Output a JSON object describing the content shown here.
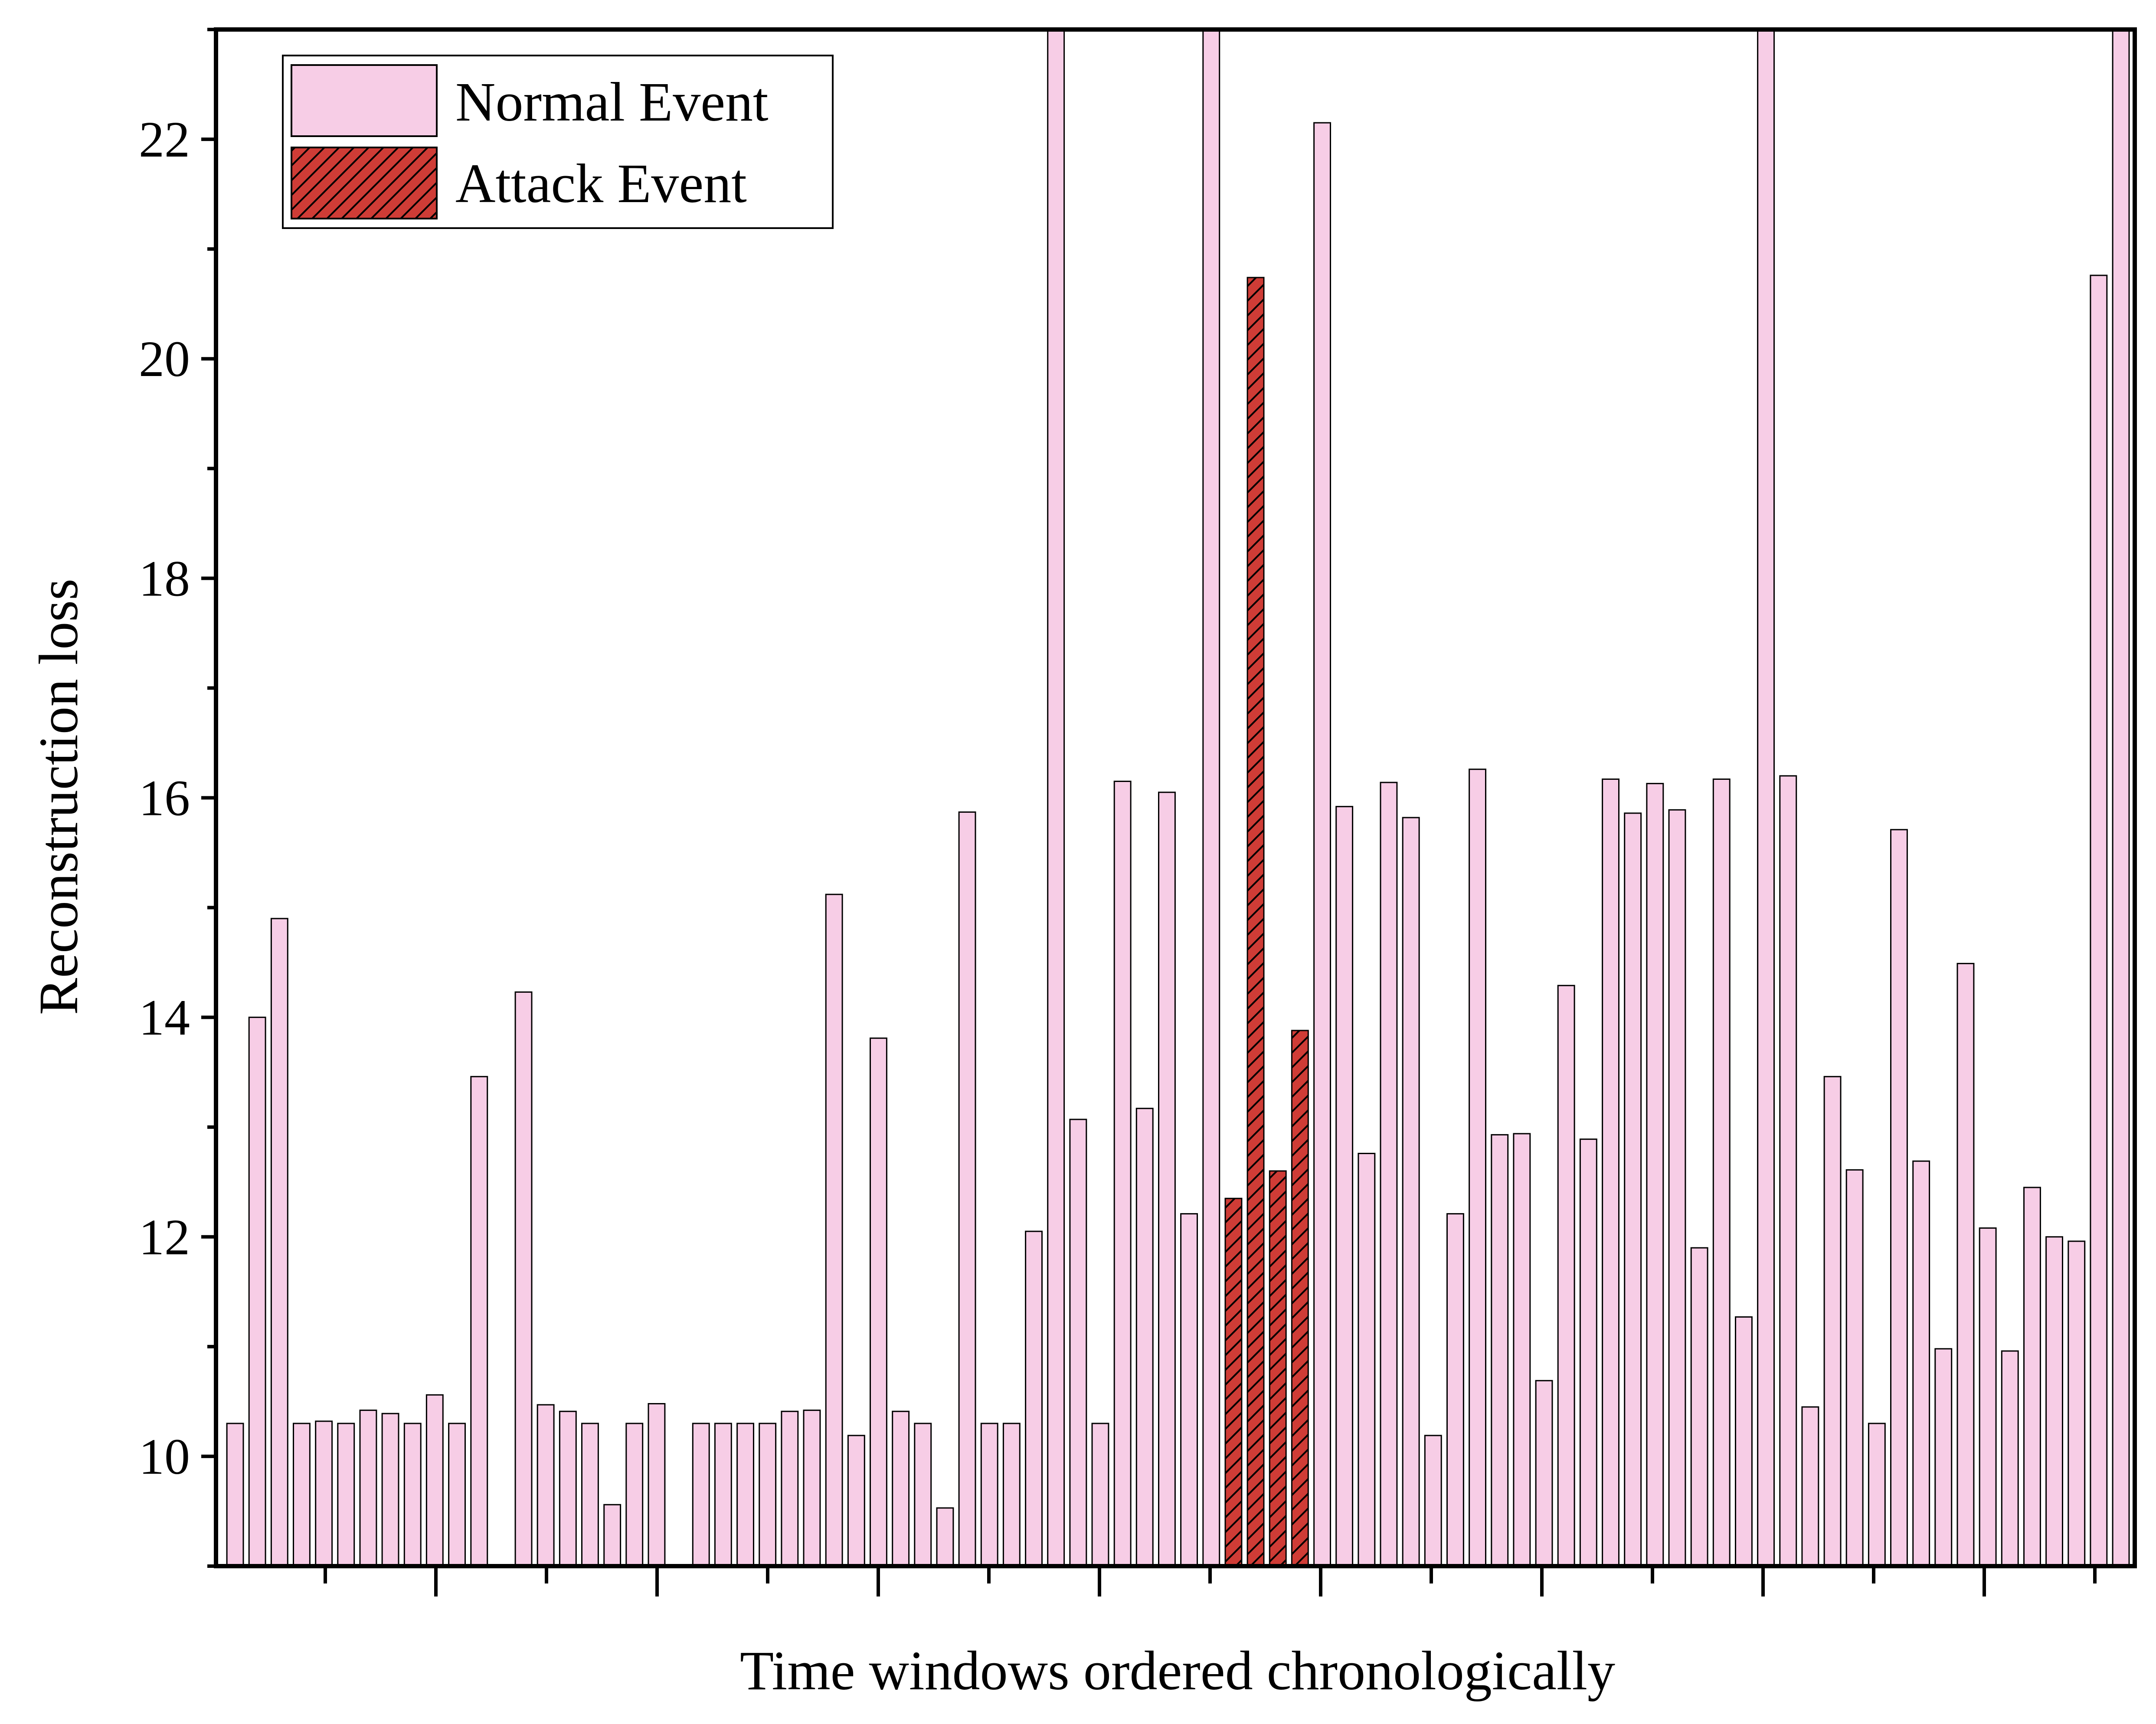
{
  "chart_data": {
    "type": "bar",
    "title": "",
    "xlabel": "Time windows ordered chronologically",
    "ylabel": "Reconstruction loss",
    "ylim": [
      9,
      23
    ],
    "yticks": [
      10,
      12,
      14,
      16,
      18,
      20,
      22
    ],
    "grid": false,
    "legend_position": "top-left",
    "colors": {
      "normal": "#f7cde6",
      "attack": "#cf3c36",
      "edge": "#000000",
      "hatch": "#000000"
    },
    "series": [
      {
        "name": "Normal Event",
        "key": "normal"
      },
      {
        "name": "Attack Event",
        "key": "attack"
      }
    ],
    "bars": [
      {
        "v": 10.3,
        "s": "normal"
      },
      {
        "v": 14.0,
        "s": "normal"
      },
      {
        "v": 14.9,
        "s": "normal"
      },
      {
        "v": 10.3,
        "s": "normal"
      },
      {
        "v": 10.32,
        "s": "normal"
      },
      {
        "v": 10.3,
        "s": "normal"
      },
      {
        "v": 10.42,
        "s": "normal"
      },
      {
        "v": 10.39,
        "s": "normal"
      },
      {
        "v": 10.3,
        "s": "normal"
      },
      {
        "v": 10.56,
        "s": "normal"
      },
      {
        "v": 10.3,
        "s": "normal"
      },
      {
        "v": 13.46,
        "s": "normal"
      },
      {
        "v": null,
        "s": "normal"
      },
      {
        "v": 14.23,
        "s": "normal"
      },
      {
        "v": 10.47,
        "s": "normal"
      },
      {
        "v": 10.41,
        "s": "normal"
      },
      {
        "v": 10.3,
        "s": "normal"
      },
      {
        "v": 9.56,
        "s": "normal"
      },
      {
        "v": 10.3,
        "s": "normal"
      },
      {
        "v": 10.48,
        "s": "normal"
      },
      {
        "v": null,
        "s": "normal"
      },
      {
        "v": 10.3,
        "s": "normal"
      },
      {
        "v": 10.3,
        "s": "normal"
      },
      {
        "v": 10.3,
        "s": "normal"
      },
      {
        "v": 10.3,
        "s": "normal"
      },
      {
        "v": 10.41,
        "s": "normal"
      },
      {
        "v": 10.42,
        "s": "normal"
      },
      {
        "v": 15.12,
        "s": "normal"
      },
      {
        "v": 10.19,
        "s": "normal"
      },
      {
        "v": 13.81,
        "s": "normal"
      },
      {
        "v": 10.41,
        "s": "normal"
      },
      {
        "v": 10.3,
        "s": "normal"
      },
      {
        "v": 9.53,
        "s": "normal"
      },
      {
        "v": 15.87,
        "s": "normal"
      },
      {
        "v": 10.3,
        "s": "normal"
      },
      {
        "v": 10.3,
        "s": "normal"
      },
      {
        "v": 12.05,
        "s": "normal"
      },
      {
        "v": 23.0,
        "s": "normal"
      },
      {
        "v": 13.07,
        "s": "normal"
      },
      {
        "v": 10.3,
        "s": "normal"
      },
      {
        "v": 16.15,
        "s": "normal"
      },
      {
        "v": 13.17,
        "s": "normal"
      },
      {
        "v": 16.05,
        "s": "normal"
      },
      {
        "v": 12.21,
        "s": "normal"
      },
      {
        "v": 23.0,
        "s": "normal"
      },
      {
        "v": 12.35,
        "s": "attack"
      },
      {
        "v": 20.74,
        "s": "attack"
      },
      {
        "v": 12.6,
        "s": "attack"
      },
      {
        "v": 13.88,
        "s": "attack"
      },
      {
        "v": 22.15,
        "s": "normal"
      },
      {
        "v": 15.92,
        "s": "normal"
      },
      {
        "v": 12.76,
        "s": "normal"
      },
      {
        "v": 16.14,
        "s": "normal"
      },
      {
        "v": 15.82,
        "s": "normal"
      },
      {
        "v": 10.19,
        "s": "normal"
      },
      {
        "v": 12.21,
        "s": "normal"
      },
      {
        "v": 16.26,
        "s": "normal"
      },
      {
        "v": 12.93,
        "s": "normal"
      },
      {
        "v": 12.94,
        "s": "normal"
      },
      {
        "v": 10.69,
        "s": "normal"
      },
      {
        "v": 14.29,
        "s": "normal"
      },
      {
        "v": 12.89,
        "s": "normal"
      },
      {
        "v": 16.17,
        "s": "normal"
      },
      {
        "v": 15.86,
        "s": "normal"
      },
      {
        "v": 16.13,
        "s": "normal"
      },
      {
        "v": 15.89,
        "s": "normal"
      },
      {
        "v": 11.9,
        "s": "normal"
      },
      {
        "v": 16.17,
        "s": "normal"
      },
      {
        "v": 11.27,
        "s": "normal"
      },
      {
        "v": 23.0,
        "s": "normal"
      },
      {
        "v": 16.2,
        "s": "normal"
      },
      {
        "v": 10.45,
        "s": "normal"
      },
      {
        "v": 13.46,
        "s": "normal"
      },
      {
        "v": 12.61,
        "s": "normal"
      },
      {
        "v": 10.3,
        "s": "normal"
      },
      {
        "v": 15.71,
        "s": "normal"
      },
      {
        "v": 12.69,
        "s": "normal"
      },
      {
        "v": 10.98,
        "s": "normal"
      },
      {
        "v": 14.49,
        "s": "normal"
      },
      {
        "v": 12.08,
        "s": "normal"
      },
      {
        "v": 10.96,
        "s": "normal"
      },
      {
        "v": 12.45,
        "s": "normal"
      },
      {
        "v": 12.0,
        "s": "normal"
      },
      {
        "v": 11.96,
        "s": "normal"
      },
      {
        "v": 20.76,
        "s": "normal"
      },
      {
        "v": 23.0,
        "s": "normal"
      }
    ]
  }
}
